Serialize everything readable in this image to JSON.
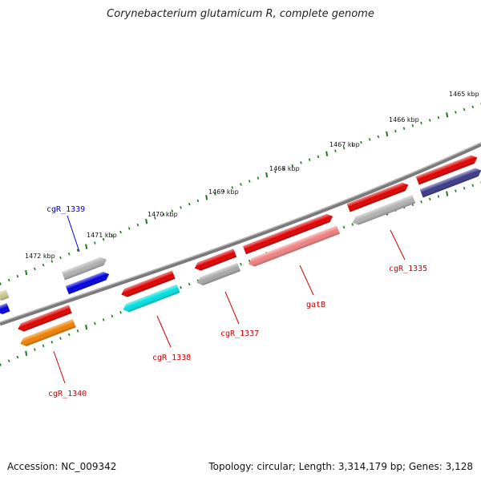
{
  "title": "Corynebacterium glutamicum R, complete genome",
  "footer": {
    "accession": "Accession: NC_009342",
    "summary": "Topology: circular; Length: 3,314,179 bp; Genes: 3,128"
  },
  "colors": {
    "backbone": "#808080",
    "tick": "#1a7a1a",
    "label_red": "#cc0000",
    "label_blue": "#0000cc"
  },
  "kbp_labels": [
    "1465 kbp",
    "1466 kbp",
    "1467 kbp",
    "1468 kbp",
    "1469 kbp",
    "1470 kbp",
    "1471 kbp",
    "1472 kbp"
  ],
  "gene_labels": [
    {
      "text": "cgR_1339",
      "color": "#0000cc"
    },
    {
      "text": "cgR_1335",
      "color": "#cc0000"
    },
    {
      "text": "gatB",
      "color": "#cc0000"
    },
    {
      "text": "cgR_1337",
      "color": "#cc0000"
    },
    {
      "text": "cgR_1338",
      "color": "#cc0000"
    },
    {
      "text": "cgR_1340",
      "color": "#cc0000"
    }
  ],
  "features": [
    {
      "track": "upper",
      "color": "#e00000",
      "strand": "forward"
    },
    {
      "track": "upper",
      "color": "#e00000",
      "strand": "forward"
    },
    {
      "track": "upper",
      "color": "#e00000",
      "strand": "forward"
    },
    {
      "track": "upper",
      "color": "#e00000",
      "strand": "reverse"
    },
    {
      "track": "upper",
      "color": "#e00000",
      "strand": "reverse"
    },
    {
      "track": "upper",
      "color": "#e00000",
      "strand": "reverse"
    },
    {
      "track": "lower",
      "color": "#3a3a8a",
      "strand": "forward"
    },
    {
      "track": "lower",
      "color": "#b0b0b0",
      "strand": "reverse"
    },
    {
      "track": "lower",
      "color": "#f08080",
      "strand": "reverse"
    },
    {
      "track": "lower",
      "color": "#a8a8a8",
      "strand": "reverse"
    },
    {
      "track": "lower",
      "color": "#00e0e0",
      "strand": "reverse"
    },
    {
      "track": "lower",
      "color": "#f08000",
      "strand": "reverse"
    },
    {
      "track": "outer",
      "color": "#b0b0b0",
      "strand": "forward"
    },
    {
      "track": "outer",
      "color": "#0000e0",
      "strand": "forward"
    },
    {
      "track": "outer",
      "color": "#c8c890",
      "strand": "reverse"
    },
    {
      "track": "outer",
      "color": "#0000e0",
      "strand": "reverse"
    }
  ]
}
